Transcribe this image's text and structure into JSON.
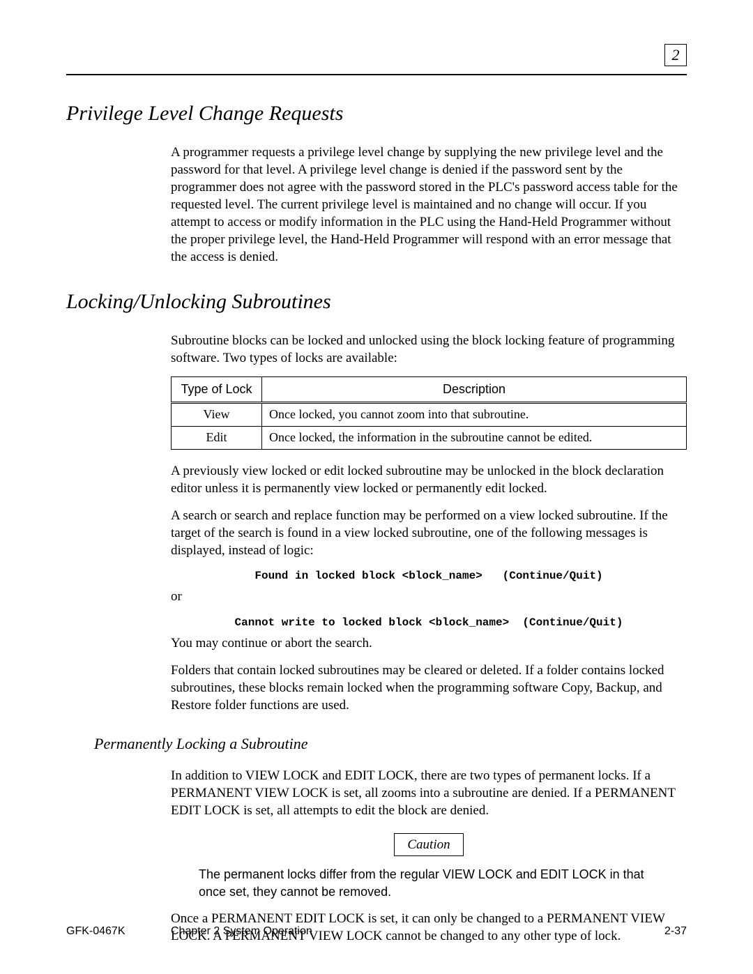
{
  "page_number_box": "2",
  "section1": {
    "heading": "Privilege Level Change Requests",
    "para1": "A programmer requests a privilege level change by supplying the new privilege level and the password for that level. A privilege level change is denied if the password sent by the programmer does not agree with the password stored in the PLC's password access table for the requested level. The current privilege level is maintained and no change will occur. If you attempt to access or modify information in the PLC using the Hand-Held Programmer without the proper privilege level, the Hand-Held Programmer will respond with an error message that the access is denied."
  },
  "section2": {
    "heading": "Locking/Unlocking Subroutines",
    "intro": "Subroutine blocks can be locked and unlocked using the block locking feature of programming software. Two types of locks are available:",
    "table": {
      "headers": [
        "Type of Lock",
        "Description"
      ],
      "rows": [
        [
          "View",
          "Once locked, you cannot zoom into that subroutine."
        ],
        [
          "Edit",
          "Once locked, the information in the subroutine cannot be edited."
        ]
      ]
    },
    "para_after_table": "A previously view locked or edit locked subroutine may be unlocked in the block declaration editor unless it is permanently view locked or permanently edit locked.",
    "para_search": "A search or search and replace function may be performed on a view locked subroutine. If the target of the search is found in a view locked subroutine, one of the following messages is displayed, instead of logic:",
    "msg1": "Found in locked block <block_name>   (Continue/Quit)",
    "or": "or",
    "msg2": "Cannot write to locked block <block_name>  (Continue/Quit)",
    "para_continue": "You may continue or abort the search.",
    "para_folders": "Folders that contain locked subroutines may be cleared or deleted. If a folder contains locked subroutines, these blocks remain locked when the programming software Copy, Backup, and Restore folder functions are used."
  },
  "subsection": {
    "heading": "Permanently Locking a Subroutine",
    "para1": "In addition to VIEW LOCK and EDIT LOCK, there are two types of permanent locks. If a PERMANENT VIEW LOCK is set, all zooms into a subroutine are denied. If a PERMANENT EDIT LOCK is set, all attempts to edit the block are denied.",
    "caution_label": "Caution",
    "caution_text": "The permanent locks differ from the regular VIEW LOCK and EDIT LOCK in that once set, they cannot be removed.",
    "para2": "Once a PERMANENT EDIT LOCK is set, it can only be changed to a PERMANENT VIEW LOCK. A PERMANENT VIEW LOCK cannot be changed to any other type of lock."
  },
  "footer": {
    "left": "GFK-0467K",
    "center": "Chapter 2  System Operation",
    "right": "2-37"
  }
}
